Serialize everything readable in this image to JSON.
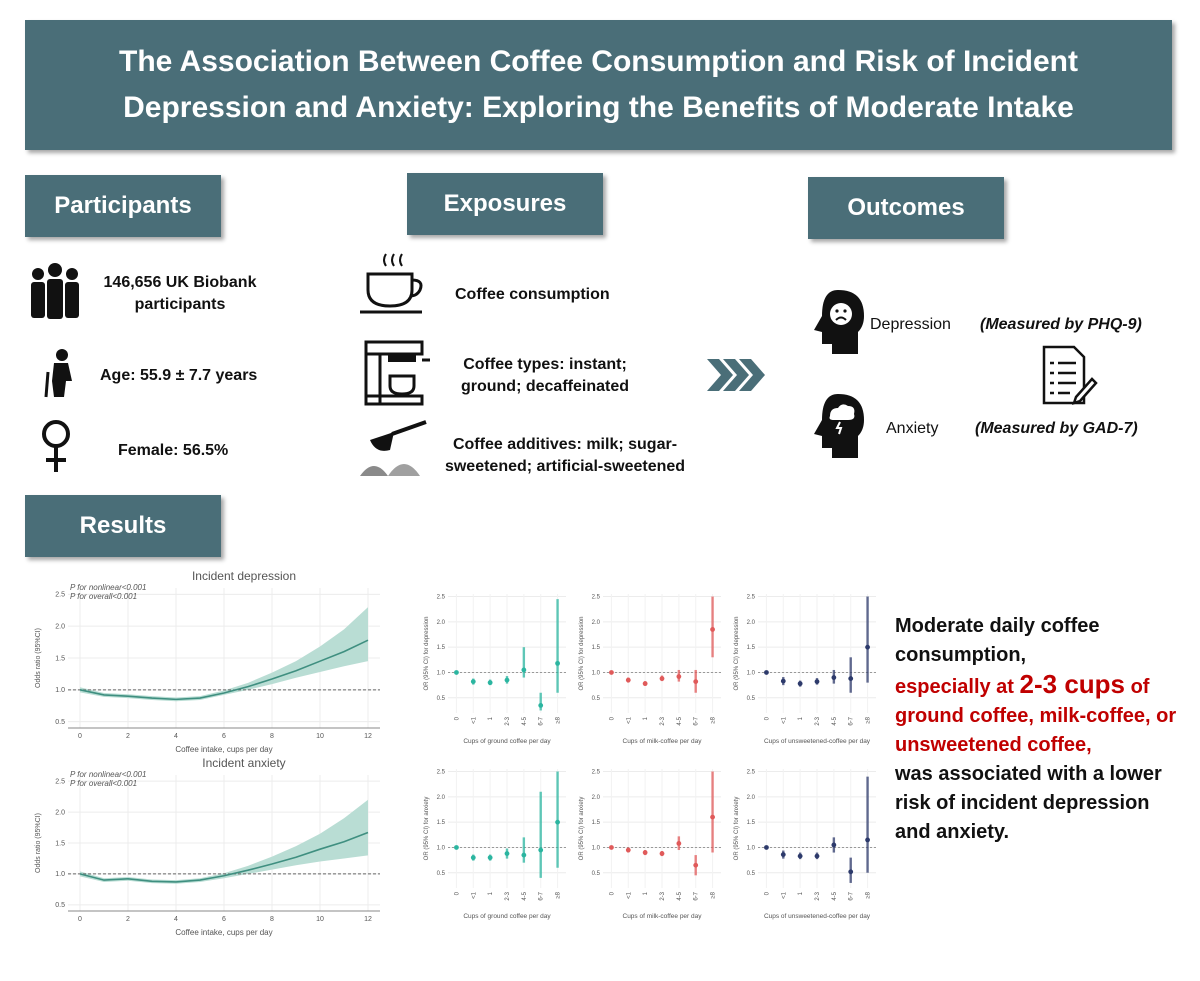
{
  "header": {
    "title": "The Association Between Coffee Consumption and Risk of Incident Depression and Anxiety: Exploring the Benefits of Moderate Intake"
  },
  "participants": {
    "heading": "Participants",
    "items": [
      "146,656 UK Biobank participants",
      "Age: 55.9 ± 7.7 years",
      "Female: 56.5%"
    ]
  },
  "exposures": {
    "heading": "Exposures",
    "items": [
      "Coffee consumption",
      "Coffee types: instant; ground; decaffeinated",
      "Coffee additives: milk; sugar-sweetened; artificial-sweetened"
    ]
  },
  "outcomes": {
    "heading": "Outcomes",
    "items": [
      {
        "name": "Depression",
        "measure": "(Measured by PHQ-9)"
      },
      {
        "name": "Anxiety",
        "measure": "(Measured by GAD-7)"
      }
    ]
  },
  "results": {
    "heading": "Results",
    "conclusion": [
      {
        "text": "Moderate daily coffee consumption,",
        "color": "#111111"
      },
      {
        "text": "especially at",
        "color": "#c00000"
      },
      {
        "text": "2-3 cups",
        "color": "#c00000",
        "large": true
      },
      {
        "text": "of ground coffee, milk-coffee, or unsweetened coffee,",
        "color": "#c00000"
      },
      {
        "text": "was associated with a lower risk of incident depression and anxiety.",
        "color": "#111111"
      }
    ]
  },
  "chart_data": [
    {
      "type": "line",
      "title": "Incident depression",
      "annotations": [
        "P for nonlinear<0.001",
        "P for overall<0.001"
      ],
      "xlabel": "Coffee intake, cups per day",
      "ylabel": "Odds ratio (95%CI)",
      "x": [
        0,
        1,
        2,
        3,
        4,
        5,
        6,
        7,
        8,
        9,
        10,
        11,
        12
      ],
      "values": [
        1.0,
        0.92,
        0.9,
        0.87,
        0.85,
        0.87,
        0.95,
        1.05,
        1.17,
        1.3,
        1.45,
        1.6,
        1.78
      ],
      "lower": [
        0.96,
        0.89,
        0.87,
        0.84,
        0.82,
        0.84,
        0.92,
        1.0,
        1.09,
        1.19,
        1.28,
        1.37,
        1.45
      ],
      "upper": [
        1.04,
        0.95,
        0.93,
        0.9,
        0.88,
        0.9,
        0.99,
        1.11,
        1.27,
        1.45,
        1.68,
        1.95,
        2.3
      ],
      "color": "#3f8f80",
      "band_color": "#b9ddd4",
      "reference_line": 1,
      "xlim": [
        -0.5,
        12.5
      ],
      "xticks": [
        0,
        2,
        4,
        6,
        8,
        10,
        12
      ],
      "ylim": [
        0.4,
        2.6
      ],
      "yticks": [
        0.5,
        {
          "value": 1,
          "label": "1.0"
        },
        1.5,
        {
          "value": 2,
          "label": "2.0"
        },
        2.5
      ],
      "grid": true
    },
    {
      "type": "line",
      "title": "Incident anxiety",
      "annotations": [
        "P for nonlinear<0.001",
        "P for overall<0.001"
      ],
      "xlabel": "Coffee intake, cups per day",
      "ylabel": "Odds ratio (95%CI)",
      "x": [
        0,
        1,
        2,
        3,
        4,
        5,
        6,
        7,
        8,
        9,
        10,
        11,
        12
      ],
      "values": [
        1.0,
        0.9,
        0.92,
        0.88,
        0.87,
        0.9,
        0.97,
        1.06,
        1.16,
        1.27,
        1.4,
        1.52,
        1.67
      ],
      "lower": [
        0.96,
        0.87,
        0.89,
        0.85,
        0.84,
        0.87,
        0.93,
        1.0,
        1.07,
        1.14,
        1.2,
        1.25,
        1.3
      ],
      "upper": [
        1.04,
        0.93,
        0.95,
        0.91,
        0.9,
        0.93,
        1.01,
        1.13,
        1.28,
        1.45,
        1.65,
        1.9,
        2.2
      ],
      "color": "#3f8f80",
      "band_color": "#b9ddd4",
      "reference_line": 1,
      "xlim": [
        -0.5,
        12.5
      ],
      "xticks": [
        0,
        2,
        4,
        6,
        8,
        10,
        12
      ],
      "ylim": [
        0.4,
        2.6
      ],
      "yticks": [
        0.5,
        {
          "value": 1,
          "label": "1.0"
        },
        1.5,
        {
          "value": 2,
          "label": "2.0"
        },
        2.5
      ],
      "grid": true
    },
    {
      "type": "forest",
      "xlabel": "Cups of ground coffee per day",
      "ylabel": "OR (95% CI) for depression",
      "categories": [
        "0",
        "<1",
        "1",
        "2-3",
        "4-5",
        "6-7",
        "≥8"
      ],
      "values": [
        1.0,
        0.82,
        0.8,
        0.85,
        1.05,
        0.35,
        1.18
      ],
      "lower": [
        1.0,
        0.76,
        0.75,
        0.78,
        0.9,
        0.25,
        0.6
      ],
      "upper": [
        1.0,
        0.88,
        0.86,
        0.93,
        1.5,
        0.6,
        2.45
      ],
      "color": "#2bb5a0",
      "reference_line": 1,
      "ylim": [
        0.2,
        2.55
      ],
      "yticks": [
        0.5,
        {
          "value": 1,
          "label": "1.0"
        },
        1.5,
        {
          "value": 2,
          "label": "2.0"
        },
        2.5
      ],
      "grid": true
    },
    {
      "type": "forest",
      "xlabel": "Cups of milk-coffee per day",
      "ylabel": "OR (95% CI) for depression",
      "categories": [
        "0",
        "<1",
        "1",
        "2-3",
        "4-5",
        "6-7",
        "≥8"
      ],
      "values": [
        1.0,
        0.85,
        0.78,
        0.88,
        0.92,
        0.82,
        1.85
      ],
      "lower": [
        1.0,
        0.8,
        0.74,
        0.83,
        0.82,
        0.6,
        1.3
      ],
      "upper": [
        1.0,
        0.9,
        0.83,
        0.94,
        1.05,
        1.05,
        2.5
      ],
      "color": "#e05a5a",
      "reference_line": 1,
      "ylim": [
        0.2,
        2.55
      ],
      "yticks": [
        0.5,
        {
          "value": 1,
          "label": "1.0"
        },
        1.5,
        {
          "value": 2,
          "label": "2.0"
        },
        2.5
      ],
      "grid": true
    },
    {
      "type": "forest",
      "xlabel": "Cups of unsweetened-coffee per day",
      "ylabel": "OR (95% CI) for depression",
      "categories": [
        "0",
        "<1",
        "1",
        "2-3",
        "4-5",
        "6-7",
        "≥8"
      ],
      "values": [
        1.0,
        0.83,
        0.78,
        0.82,
        0.9,
        0.88,
        1.5
      ],
      "lower": [
        1.0,
        0.75,
        0.72,
        0.76,
        0.78,
        0.6,
        0.8
      ],
      "upper": [
        1.0,
        0.91,
        0.84,
        0.89,
        1.05,
        1.3,
        2.5
      ],
      "color": "#2d3a6b",
      "reference_line": 1,
      "ylim": [
        0.2,
        2.55
      ],
      "yticks": [
        0.5,
        {
          "value": 1,
          "label": "1.0"
        },
        1.5,
        {
          "value": 2,
          "label": "2.0"
        },
        2.5
      ],
      "grid": true
    },
    {
      "type": "forest",
      "xlabel": "Cups of ground coffee per day",
      "ylabel": "OR (95% CI) for anxiety",
      "categories": [
        "0",
        "<1",
        "1",
        "2-3",
        "4-5",
        "6-7",
        "≥8"
      ],
      "values": [
        1.0,
        0.8,
        0.8,
        0.88,
        0.85,
        0.95,
        1.5
      ],
      "lower": [
        1.0,
        0.74,
        0.74,
        0.78,
        0.7,
        0.4,
        0.6
      ],
      "upper": [
        1.0,
        0.86,
        0.86,
        0.98,
        1.2,
        2.1,
        2.5
      ],
      "color": "#2bb5a0",
      "reference_line": 1,
      "ylim": [
        0.2,
        2.55
      ],
      "yticks": [
        0.5,
        {
          "value": 1,
          "label": "1.0"
        },
        1.5,
        {
          "value": 2,
          "label": "2.0"
        },
        2.5
      ],
      "grid": true
    },
    {
      "type": "forest",
      "xlabel": "Cups of milk-coffee per day",
      "ylabel": "OR (95% CI) for anxiety",
      "categories": [
        "0",
        "<1",
        "1",
        "2-3",
        "4-5",
        "6-7",
        "≥8"
      ],
      "values": [
        1.0,
        0.95,
        0.9,
        0.88,
        1.08,
        0.65,
        1.6
      ],
      "lower": [
        1.0,
        0.9,
        0.85,
        0.83,
        0.95,
        0.45,
        0.9
      ],
      "upper": [
        1.0,
        1.0,
        0.95,
        0.93,
        1.22,
        0.85,
        2.5
      ],
      "color": "#e05a5a",
      "reference_line": 1,
      "ylim": [
        0.2,
        2.55
      ],
      "yticks": [
        0.5,
        {
          "value": 1,
          "label": "1.0"
        },
        1.5,
        {
          "value": 2,
          "label": "2.0"
        },
        2.5
      ],
      "grid": true
    },
    {
      "type": "forest",
      "xlabel": "Cups of unsweetened-coffee per day",
      "ylabel": "OR (95% CI) for anxiety",
      "categories": [
        "0",
        "<1",
        "1",
        "2-3",
        "4-5",
        "6-7",
        "≥8"
      ],
      "values": [
        1.0,
        0.86,
        0.83,
        0.83,
        1.05,
        0.52,
        1.15
      ],
      "lower": [
        1.0,
        0.78,
        0.77,
        0.77,
        0.9,
        0.3,
        0.5
      ],
      "upper": [
        1.0,
        0.94,
        0.9,
        0.9,
        1.2,
        0.8,
        2.4
      ],
      "color": "#2d3a6b",
      "reference_line": 1,
      "ylim": [
        0.2,
        2.55
      ],
      "yticks": [
        0.5,
        {
          "value": 1,
          "label": "1.0"
        },
        1.5,
        {
          "value": 2,
          "label": "2.0"
        },
        2.5
      ],
      "grid": true
    }
  ]
}
